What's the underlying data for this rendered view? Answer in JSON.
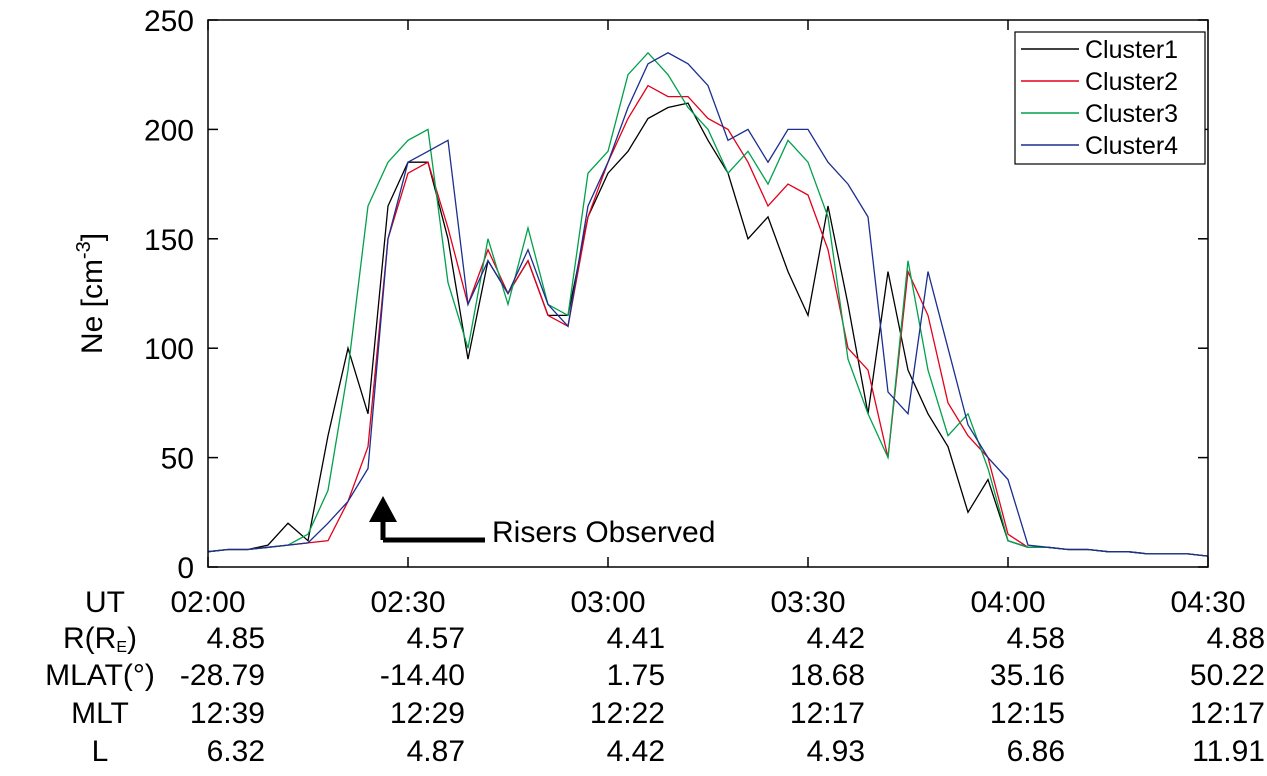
{
  "chart_data": {
    "type": "line",
    "ylabel": "Ne [cm",
    "ylabel_sup": "-3",
    "ylabel_end": "]",
    "xlabel": "UT",
    "x": [
      "02:00",
      "02:03",
      "02:06",
      "02:09",
      "02:12",
      "02:15",
      "02:18",
      "02:21",
      "02:24",
      "02:27",
      "02:30",
      "02:33",
      "02:36",
      "02:39",
      "02:42",
      "02:45",
      "02:48",
      "02:51",
      "02:54",
      "02:57",
      "03:00",
      "03:03",
      "03:06",
      "03:09",
      "03:12",
      "03:15",
      "03:18",
      "03:21",
      "03:24",
      "03:27",
      "03:30",
      "03:33",
      "03:36",
      "03:39",
      "03:42",
      "03:45",
      "03:48",
      "03:51",
      "03:54",
      "03:57",
      "04:00",
      "04:03",
      "04:06",
      "04:09",
      "04:12",
      "04:15",
      "04:18",
      "04:21",
      "04:24",
      "04:27",
      "04:30"
    ],
    "series": [
      {
        "name": "Cluster1",
        "color": "#000000",
        "values": [
          7,
          8,
          8,
          10,
          20,
          12,
          60,
          100,
          70,
          165,
          185,
          185,
          150,
          95,
          140,
          125,
          140,
          115,
          115,
          160,
          180,
          190,
          205,
          210,
          212,
          195,
          180,
          150,
          160,
          135,
          115,
          165,
          120,
          70,
          135,
          90,
          70,
          55,
          25,
          40,
          12,
          9,
          9,
          8,
          8,
          7,
          7,
          6,
          6,
          6,
          5
        ]
      },
      {
        "name": "Cluster2",
        "color": "#e3001b",
        "values": [
          7,
          8,
          8,
          9,
          10,
          11,
          12,
          30,
          55,
          150,
          180,
          185,
          155,
          120,
          145,
          125,
          140,
          115,
          110,
          160,
          185,
          205,
          220,
          215,
          215,
          205,
          200,
          185,
          165,
          175,
          170,
          145,
          100,
          90,
          50,
          135,
          115,
          75,
          60,
          50,
          15,
          9,
          9,
          8,
          8,
          7,
          7,
          6,
          6,
          6,
          5
        ]
      },
      {
        "name": "Cluster3",
        "color": "#00a14b",
        "values": [
          7,
          8,
          8,
          9,
          10,
          15,
          35,
          90,
          165,
          185,
          195,
          200,
          130,
          100,
          150,
          120,
          155,
          120,
          115,
          180,
          190,
          225,
          235,
          225,
          210,
          200,
          180,
          190,
          175,
          195,
          185,
          160,
          95,
          70,
          50,
          140,
          90,
          60,
          70,
          45,
          12,
          9,
          9,
          8,
          8,
          7,
          7,
          6,
          6,
          6,
          5
        ]
      },
      {
        "name": "Cluster4",
        "color": "#1b2f8f",
        "values": [
          7,
          8,
          8,
          9,
          10,
          11,
          20,
          30,
          45,
          150,
          185,
          190,
          195,
          120,
          140,
          125,
          145,
          120,
          110,
          165,
          185,
          210,
          230,
          235,
          230,
          220,
          195,
          200,
          185,
          200,
          200,
          185,
          175,
          160,
          80,
          70,
          135,
          100,
          65,
          50,
          40,
          10,
          9,
          8,
          8,
          7,
          7,
          6,
          6,
          6,
          5
        ]
      }
    ],
    "xlim": [
      "02:00",
      "04:30"
    ],
    "xticks": [
      "02:00",
      "02:30",
      "03:00",
      "03:30",
      "04:00",
      "04:30"
    ],
    "ylim": [
      0,
      250
    ],
    "yticks": [
      0,
      50,
      100,
      150,
      200,
      250
    ],
    "legend": "upper right",
    "annotation": "Risers Observed",
    "ephemeris": [
      {
        "label": "R(R",
        "label_sub": "E",
        "label_end": ")",
        "values": [
          "4.85",
          "4.57",
          "4.41",
          "4.42",
          "4.58",
          "4.88"
        ]
      },
      {
        "label": "MLAT(°)",
        "values": [
          "-28.79",
          "-14.40",
          "1.75",
          "18.68",
          "35.16",
          "50.22"
        ]
      },
      {
        "label": "MLT",
        "values": [
          "12:39",
          "12:29",
          "12:22",
          "12:17",
          "12:15",
          "12:17"
        ]
      },
      {
        "label": "L",
        "values": [
          "6.32",
          "4.87",
          "4.42",
          "4.93",
          "6.86",
          "11.91"
        ]
      }
    ]
  }
}
